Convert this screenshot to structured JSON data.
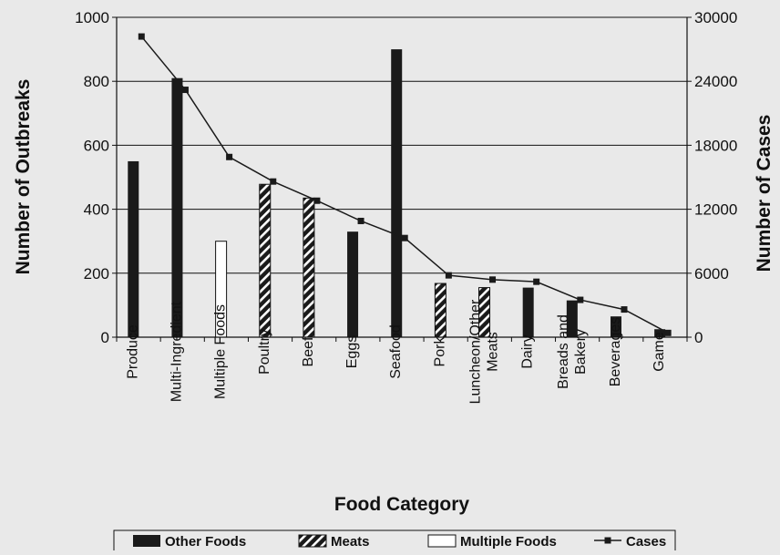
{
  "chart_data": {
    "type": "bar",
    "categories": [
      [
        "Produce"
      ],
      [
        "Multi-Ingredient"
      ],
      [
        "Multiple Foods"
      ],
      [
        "Poultry"
      ],
      [
        "Beef"
      ],
      [
        "Eggs"
      ],
      [
        "Seafood"
      ],
      [
        "Pork"
      ],
      [
        "Luncheon/Other",
        "Meats"
      ],
      [
        "Dairy"
      ],
      [
        "Breads and",
        "Bakery"
      ],
      [
        "Beverages"
      ],
      [
        "Game"
      ]
    ],
    "outbreaks": {
      "name": "Number of Outbreaks",
      "values": [
        550,
        810,
        300,
        478,
        435,
        330,
        900,
        168,
        155,
        155,
        115,
        65,
        25
      ],
      "groups": [
        "Other Foods",
        "Other Foods",
        "Multiple Foods",
        "Meats",
        "Meats",
        "Other Foods",
        "Other Foods",
        "Meats",
        "Meats",
        "Other Foods",
        "Other Foods",
        "Other Foods",
        "Other Foods"
      ]
    },
    "cases": {
      "name": "Cases",
      "values": [
        28200,
        23200,
        16900,
        14600,
        12800,
        10900,
        9300,
        5800,
        5400,
        5200,
        3500,
        2600,
        400
      ]
    },
    "xlabel": "Food Category",
    "ylabel_left": "Number of Outbreaks",
    "ylabel_right": "Number of Cases",
    "ylim_left": [
      0,
      1000
    ],
    "ylim_right": [
      0,
      30000
    ],
    "yticks_left": [
      0,
      200,
      400,
      600,
      800,
      1000
    ],
    "yticks_right": [
      0,
      6000,
      12000,
      18000,
      24000,
      30000
    ],
    "grid": true,
    "legend_position": "bottom",
    "legend": [
      {
        "label": "Other Foods",
        "style": "solid"
      },
      {
        "label": "Meats",
        "style": "hatched"
      },
      {
        "label": "Multiple Foods",
        "style": "open"
      },
      {
        "label": "Cases",
        "style": "line-marker"
      }
    ],
    "colors": {
      "bar": "#1a1a1a",
      "line": "#1a1a1a",
      "background": "#e9e9e9"
    }
  }
}
